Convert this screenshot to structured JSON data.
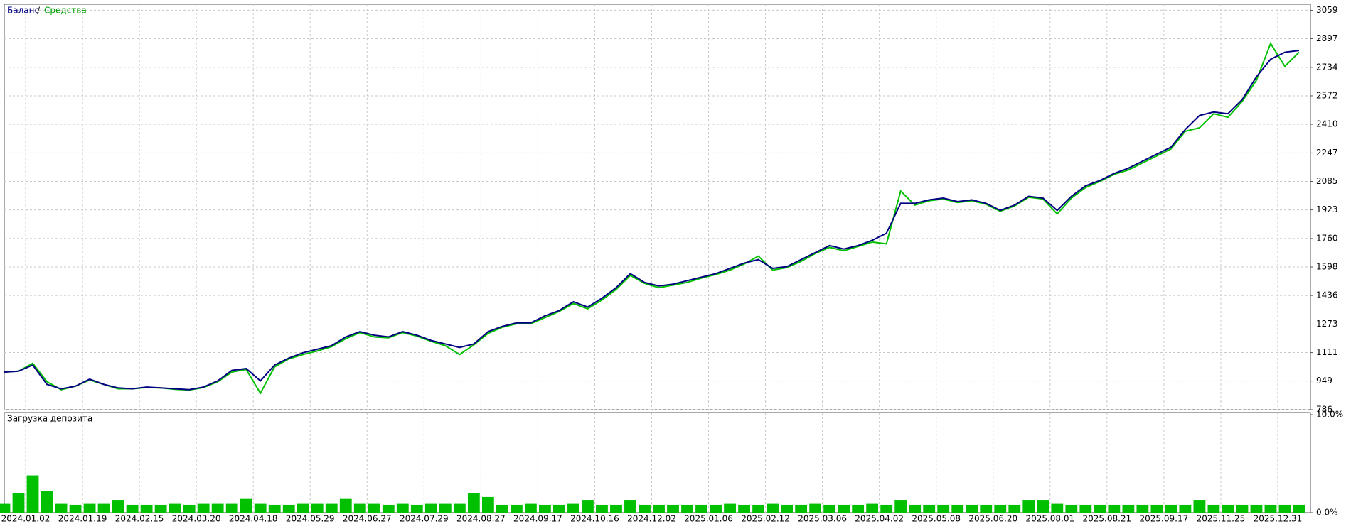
{
  "chart_data": {
    "type": "line",
    "legend_label": "Баланс",
    "legend_separator": "/",
    "legend_label2": "Средства",
    "xlim": [
      0,
      91.8
    ],
    "xticks": [
      {
        "value": 1.5,
        "label": "2024.01.02"
      },
      {
        "value": 5.5,
        "label": "2024.01.19"
      },
      {
        "value": 9.5,
        "label": "2024.02.15"
      },
      {
        "value": 13.5,
        "label": "2024.03.20"
      },
      {
        "value": 17.5,
        "label": "2024.04.18"
      },
      {
        "value": 21.5,
        "label": "2024.05.29"
      },
      {
        "value": 25.5,
        "label": "2024.06.27"
      },
      {
        "value": 29.5,
        "label": "2024.07.29"
      },
      {
        "value": 33.5,
        "label": "2024.08.27"
      },
      {
        "value": 37.5,
        "label": "2024.09.17"
      },
      {
        "value": 41.5,
        "label": "2024.10.16"
      },
      {
        "value": 45.5,
        "label": "2024.12.02"
      },
      {
        "value": 49.5,
        "label": "2025.01.06"
      },
      {
        "value": 53.5,
        "label": "2025.02.12"
      },
      {
        "value": 57.5,
        "label": "2025.03.06"
      },
      {
        "value": 61.5,
        "label": "2025.04.02"
      },
      {
        "value": 65.5,
        "label": "2025.05.08"
      },
      {
        "value": 69.5,
        "label": "2025.06.20"
      },
      {
        "value": 73.5,
        "label": "2025.08.01"
      },
      {
        "value": 77.5,
        "label": "2025.08.21"
      },
      {
        "value": 81.5,
        "label": "2025.09.17"
      },
      {
        "value": 85.5,
        "label": "2025.11.25"
      },
      {
        "value": 89.5,
        "label": "2025.12.31"
      }
    ],
    "ylim": [
      786,
      3093
    ],
    "yticks": [
      786,
      949,
      1111,
      1273,
      1436,
      1598,
      1760,
      1923,
      2085,
      2247,
      2410,
      2572,
      2734,
      2897,
      3059
    ],
    "grid": true,
    "series": [
      {
        "name": "Средства",
        "color": "#00c000",
        "values": [
          1000,
          1005,
          1050,
          945,
          900,
          920,
          955,
          930,
          905,
          905,
          912,
          910,
          902,
          898,
          912,
          945,
          1000,
          1015,
          880,
          1030,
          1075,
          1100,
          1120,
          1145,
          1190,
          1225,
          1200,
          1195,
          1225,
          1205,
          1175,
          1150,
          1100,
          1155,
          1220,
          1255,
          1275,
          1275,
          1310,
          1345,
          1390,
          1360,
          1410,
          1470,
          1550,
          1505,
          1480,
          1495,
          1510,
          1535,
          1555,
          1580,
          1615,
          1660,
          1580,
          1595,
          1630,
          1675,
          1710,
          1690,
          1715,
          1740,
          1730,
          2030,
          1950,
          1975,
          1985,
          1965,
          1975,
          1955,
          1915,
          1945,
          1995,
          1985,
          1900,
          1990,
          2050,
          2085,
          2125,
          2150,
          2190,
          2230,
          2270,
          2370,
          2390,
          2470,
          2450,
          2540,
          2660,
          2870,
          2740,
          2820
        ]
      },
      {
        "name": "Баланс",
        "color": "#000080",
        "values": [
          1000,
          1005,
          1040,
          930,
          905,
          920,
          960,
          930,
          910,
          905,
          915,
          910,
          905,
          900,
          915,
          950,
          1010,
          1020,
          950,
          1040,
          1080,
          1110,
          1130,
          1150,
          1200,
          1230,
          1210,
          1200,
          1230,
          1210,
          1180,
          1160,
          1140,
          1160,
          1230,
          1260,
          1280,
          1280,
          1320,
          1350,
          1400,
          1370,
          1420,
          1480,
          1560,
          1510,
          1490,
          1500,
          1520,
          1540,
          1560,
          1590,
          1620,
          1640,
          1590,
          1600,
          1640,
          1680,
          1720,
          1700,
          1720,
          1750,
          1790,
          1960,
          1960,
          1980,
          1990,
          1970,
          1980,
          1960,
          1920,
          1950,
          2000,
          1990,
          1920,
          2000,
          2060,
          2090,
          2130,
          2160,
          2200,
          2240,
          2280,
          2380,
          2460,
          2480,
          2470,
          2550,
          2680,
          2780,
          2820,
          2830
        ]
      }
    ],
    "load_panel": {
      "type": "bar",
      "title": "Загрузка депозита",
      "color": "#00c000",
      "ylim": [
        0,
        10
      ],
      "yticks": [
        {
          "value": 10,
          "label": "10.0%"
        },
        {
          "value": 0,
          "label": "0.0%"
        }
      ],
      "values": [
        0.9,
        2.0,
        3.8,
        2.2,
        0.9,
        0.8,
        0.9,
        0.9,
        1.3,
        0.8,
        0.8,
        0.8,
        0.9,
        0.8,
        0.9,
        0.9,
        0.9,
        1.4,
        0.9,
        0.8,
        0.8,
        0.9,
        0.9,
        0.9,
        1.4,
        0.9,
        0.9,
        0.8,
        0.9,
        0.8,
        0.9,
        0.9,
        0.9,
        2.0,
        1.6,
        0.8,
        0.8,
        0.9,
        0.8,
        0.8,
        0.9,
        1.3,
        0.8,
        0.8,
        1.3,
        0.8,
        0.8,
        0.8,
        0.8,
        0.8,
        0.8,
        0.9,
        0.8,
        0.8,
        0.9,
        0.8,
        0.8,
        0.9,
        0.8,
        0.8,
        0.8,
        0.9,
        0.8,
        1.3,
        0.8,
        0.8,
        0.8,
        0.8,
        0.8,
        0.8,
        0.8,
        0.8,
        1.3,
        1.3,
        0.9,
        0.8,
        0.8,
        0.8,
        0.8,
        0.8,
        0.8,
        0.8,
        0.8,
        0.8,
        1.3,
        0.8,
        0.8,
        0.8,
        0.8,
        0.8,
        0.8,
        0.8
      ]
    }
  }
}
